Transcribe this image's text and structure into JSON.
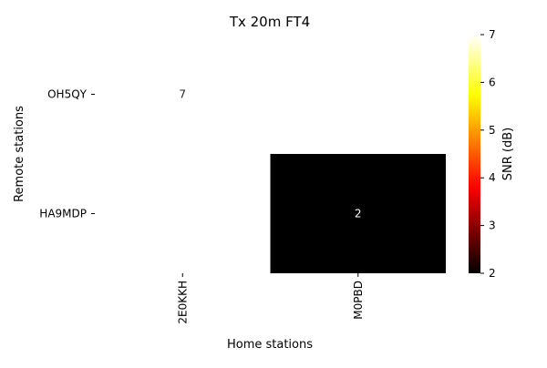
{
  "chart_data": {
    "type": "heatmap",
    "title": "Tx 20m FT4",
    "xlabel": "Home stations",
    "ylabel": "Remote stations",
    "x_categories": [
      "2E0KKH",
      "M0PBD"
    ],
    "y_categories": [
      "OH5QY",
      "HA9MDP"
    ],
    "cells": [
      {
        "x": "2E0KKH",
        "y": "OH5QY",
        "value": 7
      },
      {
        "x": "M0PBD",
        "y": "HA9MDP",
        "value": 2
      }
    ],
    "colorbar": {
      "label": "SNR (dB)",
      "range": [
        2,
        7
      ],
      "ticks": [
        2,
        3,
        4,
        5,
        6,
        7
      ],
      "colormap": "hot",
      "stops": [
        "#000000",
        "#e60000",
        "#ff8000",
        "#ffff00",
        "#ffffff"
      ]
    },
    "grid": false
  }
}
